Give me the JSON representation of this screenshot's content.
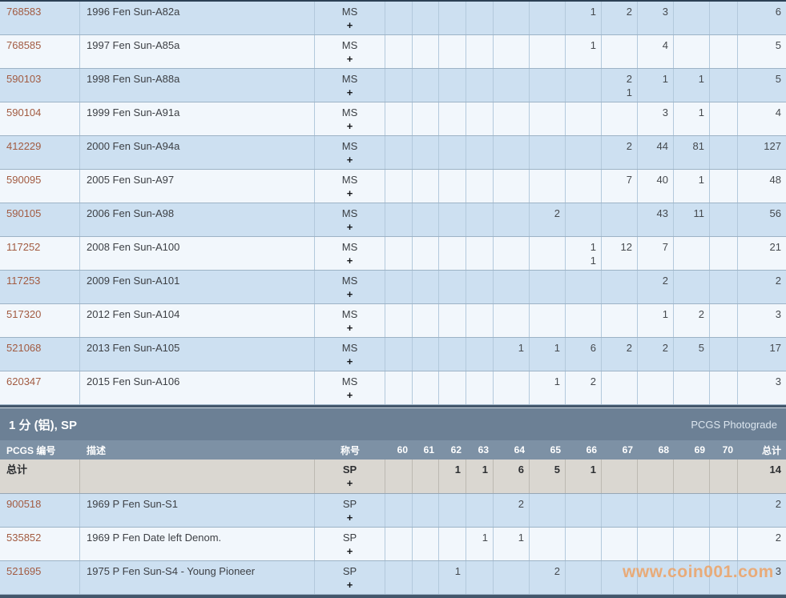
{
  "watermark": "www.coin001.com",
  "columns": {
    "pcgs_header": "PCGS 编号",
    "desc_header": "描述",
    "designation_header": "称号",
    "grade_headers": [
      "60",
      "61",
      "62",
      "63",
      "64",
      "65",
      "66",
      "67",
      "68",
      "69",
      "70"
    ],
    "total_header": "总计"
  },
  "section_ms": {
    "rows": [
      {
        "pcgs": "768583",
        "desc": "1996 Fen Sun-A82a",
        "designation": "MS",
        "plus_label": "+",
        "cells": [
          "",
          "",
          "",
          "",
          "",
          "",
          "1",
          "2",
          "3",
          "",
          ""
        ],
        "total": "6"
      },
      {
        "pcgs": "768585",
        "desc": "1997 Fen Sun-A85a",
        "designation": "MS",
        "plus_label": "+",
        "cells": [
          "",
          "",
          "",
          "",
          "",
          "",
          "1",
          "",
          "4",
          "",
          ""
        ],
        "total": "5"
      },
      {
        "pcgs": "590103",
        "desc": "1998 Fen Sun-A88a",
        "designation": "MS",
        "plus_label": "+",
        "cells": [
          "",
          "",
          "",
          "",
          "",
          "",
          "",
          "2",
          "1",
          "1",
          ""
        ],
        "plus_cells": [
          "",
          "",
          "",
          "",
          "",
          "",
          "",
          "1",
          "",
          "",
          ""
        ],
        "total": "5"
      },
      {
        "pcgs": "590104",
        "desc": "1999 Fen Sun-A91a",
        "designation": "MS",
        "plus_label": "+",
        "cells": [
          "",
          "",
          "",
          "",
          "",
          "",
          "",
          "",
          "3",
          "1",
          ""
        ],
        "total": "4"
      },
      {
        "pcgs": "412229",
        "desc": "2000 Fen Sun-A94a",
        "designation": "MS",
        "plus_label": "+",
        "cells": [
          "",
          "",
          "",
          "",
          "",
          "",
          "",
          "2",
          "44",
          "81",
          ""
        ],
        "total": "127"
      },
      {
        "pcgs": "590095",
        "desc": "2005 Fen Sun-A97",
        "designation": "MS",
        "plus_label": "+",
        "cells": [
          "",
          "",
          "",
          "",
          "",
          "",
          "",
          "7",
          "40",
          "1",
          ""
        ],
        "total": "48"
      },
      {
        "pcgs": "590105",
        "desc": "2006 Fen Sun-A98",
        "designation": "MS",
        "plus_label": "+",
        "cells": [
          "",
          "",
          "",
          "",
          "",
          "2",
          "",
          "",
          "43",
          "11",
          ""
        ],
        "total": "56"
      },
      {
        "pcgs": "117252",
        "desc": "2008 Fen Sun-A100",
        "designation": "MS",
        "plus_label": "+",
        "cells": [
          "",
          "",
          "",
          "",
          "",
          "",
          "1",
          "12",
          "7",
          "",
          ""
        ],
        "plus_cells": [
          "",
          "",
          "",
          "",
          "",
          "",
          "1",
          "",
          "",
          "",
          ""
        ],
        "total": "21"
      },
      {
        "pcgs": "117253",
        "desc": "2009 Fen Sun-A101",
        "designation": "MS",
        "plus_label": "+",
        "cells": [
          "",
          "",
          "",
          "",
          "",
          "",
          "",
          "",
          "2",
          "",
          ""
        ],
        "total": "2"
      },
      {
        "pcgs": "517320",
        "desc": "2012 Fen Sun-A104",
        "designation": "MS",
        "plus_label": "+",
        "cells": [
          "",
          "",
          "",
          "",
          "",
          "",
          "",
          "",
          "1",
          "2",
          ""
        ],
        "total": "3"
      },
      {
        "pcgs": "521068",
        "desc": "2013 Fen Sun-A105",
        "designation": "MS",
        "plus_label": "+",
        "cells": [
          "",
          "",
          "",
          "",
          "1",
          "1",
          "6",
          "2",
          "2",
          "5",
          ""
        ],
        "total": "17"
      },
      {
        "pcgs": "620347",
        "desc": "2015 Fen Sun-A106",
        "designation": "MS",
        "plus_label": "+",
        "cells": [
          "",
          "",
          "",
          "",
          "",
          "1",
          "2",
          "",
          "",
          "",
          ""
        ],
        "total": "3"
      }
    ]
  },
  "section_sp": {
    "title": "1 分 (铝), SP",
    "photograde_label": "PCGS Photograde",
    "total_row": {
      "label": "总计",
      "designation": "SP",
      "plus_label": "+",
      "cells": [
        "",
        "",
        "1",
        "1",
        "6",
        "5",
        "1",
        "",
        "",
        "",
        ""
      ],
      "total": "14"
    },
    "rows": [
      {
        "pcgs": "900518",
        "desc": "1969 P Fen Sun-S1",
        "designation": "SP",
        "plus_label": "+",
        "cells": [
          "",
          "",
          "",
          "",
          "2",
          "",
          "",
          "",
          "",
          "",
          ""
        ],
        "total": "2"
      },
      {
        "pcgs": "535852",
        "desc": "1969 P Fen Date left Denom.",
        "designation": "SP",
        "plus_label": "+",
        "cells": [
          "",
          "",
          "",
          "1",
          "1",
          "",
          "",
          "",
          "",
          "",
          ""
        ],
        "total": "2"
      },
      {
        "pcgs": "521695",
        "desc": "1975 P Fen Sun-S4 - Young Pioneer",
        "designation": "SP",
        "plus_label": "+",
        "cells": [
          "",
          "",
          "1",
          "",
          "",
          "2",
          "",
          "",
          "",
          "",
          ""
        ],
        "total": "3"
      }
    ]
  }
}
